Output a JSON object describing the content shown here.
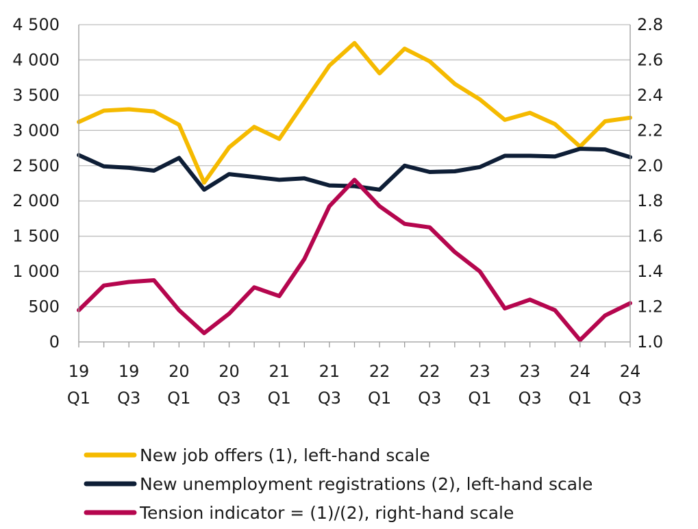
{
  "chart_data": {
    "type": "line",
    "categories": [
      {
        "year": "19",
        "quarter": "Q1"
      },
      {
        "year": "",
        "quarter": ""
      },
      {
        "year": "19",
        "quarter": "Q3"
      },
      {
        "year": "",
        "quarter": ""
      },
      {
        "year": "20",
        "quarter": "Q1"
      },
      {
        "year": "",
        "quarter": ""
      },
      {
        "year": "20",
        "quarter": "Q3"
      },
      {
        "year": "",
        "quarter": ""
      },
      {
        "year": "21",
        "quarter": "Q1"
      },
      {
        "year": "",
        "quarter": ""
      },
      {
        "year": "21",
        "quarter": "Q3"
      },
      {
        "year": "",
        "quarter": ""
      },
      {
        "year": "22",
        "quarter": "Q1"
      },
      {
        "year": "",
        "quarter": ""
      },
      {
        "year": "22",
        "quarter": "Q3"
      },
      {
        "year": "",
        "quarter": ""
      },
      {
        "year": "23",
        "quarter": "Q1"
      },
      {
        "year": "",
        "quarter": ""
      },
      {
        "year": "23",
        "quarter": "Q3"
      },
      {
        "year": "",
        "quarter": ""
      },
      {
        "year": "24",
        "quarter": "Q1"
      },
      {
        "year": "",
        "quarter": ""
      },
      {
        "year": "24",
        "quarter": "Q3"
      }
    ],
    "y_left": {
      "min": 0,
      "max": 4500,
      "ticks": [
        0,
        500,
        1000,
        1500,
        2000,
        2500,
        3000,
        3500,
        4000,
        4500
      ],
      "tick_labels": [
        "0",
        "500",
        "1 000",
        "1 500",
        "2 000",
        "2 500",
        "3 000",
        "3 500",
        "4 000",
        "4 500"
      ]
    },
    "y_right": {
      "min": 1.0,
      "max": 2.8,
      "ticks": [
        1.0,
        1.2,
        1.4,
        1.6,
        1.8,
        2.0,
        2.2,
        2.4,
        2.6,
        2.8
      ],
      "tick_labels": [
        "1.0",
        "1.2",
        "1.4",
        "1.6",
        "1.8",
        "2.0",
        "2.2",
        "2.4",
        "2.6",
        "2.8"
      ]
    },
    "grid": true,
    "legend_position": "bottom",
    "series": [
      {
        "name": "New job offers (1), left-hand scale",
        "axis": "left",
        "color": "#F5BA00",
        "values": [
          3120,
          3280,
          3300,
          3270,
          3080,
          2260,
          2760,
          3050,
          2880,
          3400,
          3920,
          4240,
          3810,
          4160,
          3980,
          3660,
          3440,
          3150,
          3250,
          3090,
          2770,
          3130,
          3180
        ]
      },
      {
        "name": "New unemployment registrations (2), left-hand scale",
        "axis": "left",
        "color": "#0E1E36",
        "values": [
          2650,
          2490,
          2470,
          2430,
          2610,
          2160,
          2380,
          2340,
          2300,
          2320,
          2220,
          2210,
          2160,
          2500,
          2410,
          2420,
          2480,
          2640,
          2640,
          2630,
          2740,
          2730,
          2620
        ]
      },
      {
        "name": "Tension indicator = (1)/(2), right-hand scale",
        "axis": "right",
        "color": "#B5064E",
        "values": [
          1.18,
          1.32,
          1.34,
          1.35,
          1.18,
          1.05,
          1.16,
          1.31,
          1.26,
          1.47,
          1.77,
          1.92,
          1.77,
          1.67,
          1.65,
          1.51,
          1.4,
          1.19,
          1.24,
          1.18,
          1.01,
          1.15,
          1.22
        ]
      }
    ]
  }
}
